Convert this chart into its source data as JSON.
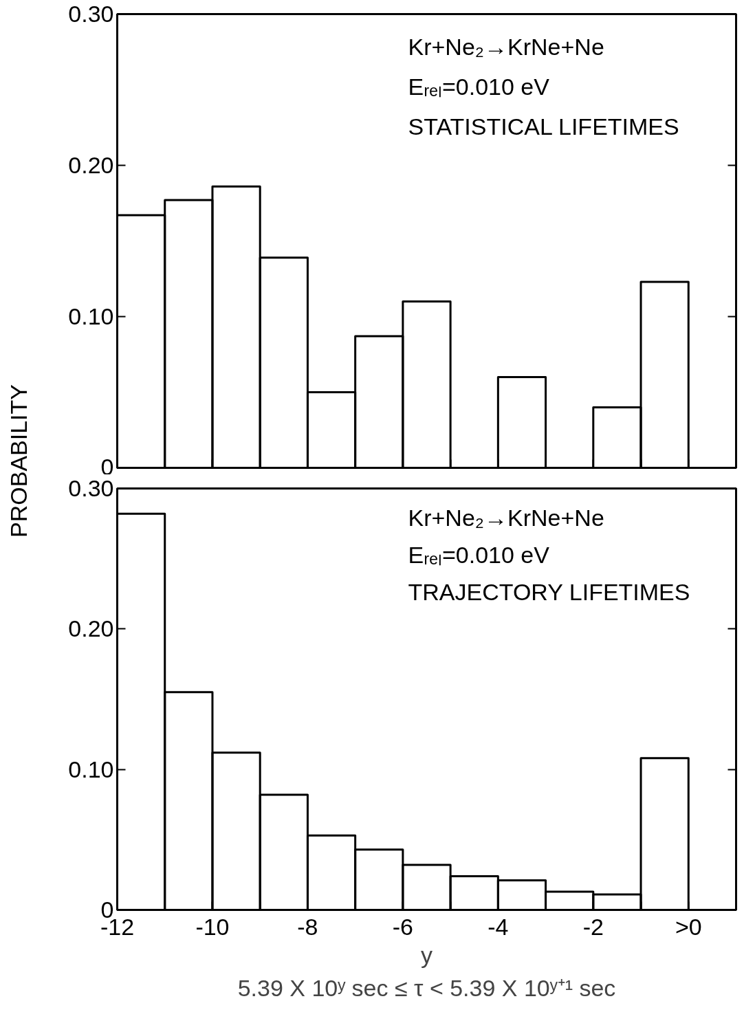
{
  "chart_data": [
    {
      "type": "histogram",
      "ylabel": "PROBABILITY",
      "bins": [
        -12,
        -11,
        -10,
        -9,
        -8,
        -7,
        -6,
        -5,
        -4,
        -3,
        -2,
        -1,
        0
      ],
      "values": [
        0.167,
        0.177,
        0.186,
        0.139,
        0.05,
        0.087,
        0.11,
        0,
        0.06,
        0,
        0.04,
        0.123
      ],
      "color": "#000000",
      "xlim": [
        -12,
        1
      ],
      "ylim": [
        0,
        0.3
      ],
      "xticks": [
        {
          "value": -12,
          "label": null
        },
        {
          "value": -11,
          "label": null
        },
        {
          "value": -10,
          "label": null
        },
        {
          "value": -9,
          "label": null
        },
        {
          "value": -8,
          "label": null
        },
        {
          "value": -7,
          "label": null
        },
        {
          "value": -6,
          "label": null
        },
        {
          "value": -5,
          "label": null
        },
        {
          "value": -4,
          "label": null
        },
        {
          "value": -3,
          "label": null
        },
        {
          "value": -2,
          "label": null
        },
        {
          "value": -1,
          "label": null
        },
        {
          "value": 0,
          "label": null
        }
      ],
      "yticks": [
        0,
        {
          "value": 0.1,
          "label": "0.10"
        },
        {
          "value": 0.2,
          "label": "0.20"
        },
        {
          "value": 0.3,
          "label": "0.30"
        }
      ],
      "tick_labels": "y",
      "annotations": [
        "Kr+Ne₂→KrNe+Ne",
        "Eᵣₑₗ=0.010 eV",
        "STATISTICAL LIFETIMES"
      ]
    },
    {
      "type": "histogram",
      "bins": [
        -12,
        -11,
        -10,
        -9,
        -8,
        -7,
        -6,
        -5,
        -4,
        -3,
        -2,
        -1,
        0
      ],
      "values": [
        0.282,
        0.155,
        0.112,
        0.082,
        0.053,
        0.043,
        0.032,
        0.024,
        0.021,
        0.013,
        0.011,
        0.108
      ],
      "color": "#000000",
      "xlim": [
        -12,
        1
      ],
      "ylim": [
        0,
        0.3
      ],
      "xlabel": "y",
      "xticks": [
        -12,
        {
          "value": -11,
          "label": null
        },
        -10,
        {
          "value": -9,
          "label": null
        },
        -8,
        {
          "value": -7,
          "label": null
        },
        -6,
        {
          "value": -5,
          "label": null
        },
        -4,
        {
          "value": -3,
          "label": null
        },
        -2,
        {
          "value": -1,
          "label": null
        },
        {
          "value": 0,
          "label": ">0"
        }
      ],
      "yticks": [
        0,
        {
          "value": 0.1,
          "label": "0.10"
        },
        {
          "value": 0.2,
          "label": "0.20"
        },
        {
          "value": 0.3,
          "label": "0.30"
        }
      ],
      "annotations": [
        "Kr+Ne₂→KrNe+Ne",
        "Eᵣₑₗ=0.010 eV",
        "TRAJECTORY LIFETIMES",
        "5.39 X 10ʸ sec ≤ τ < 5.39 X 10ʸ⁺¹ sec"
      ]
    }
  ]
}
